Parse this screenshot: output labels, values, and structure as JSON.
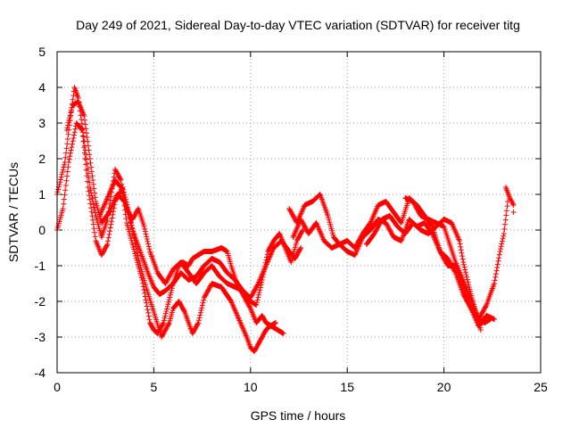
{
  "chart_data": {
    "type": "scatter",
    "title": "Day 249 of 2021, Sidereal Day-to-day VTEC variation (SDTVAR) for receiver titg",
    "xlabel": "GPS time / hours",
    "ylabel": "SDTVAR / TECUs",
    "xlim": [
      0,
      25
    ],
    "ylim": [
      -4,
      5
    ],
    "xticks": [
      0,
      5,
      10,
      15,
      20,
      25
    ],
    "yticks": [
      -4,
      -3,
      -2,
      -1,
      0,
      1,
      2,
      3,
      4,
      5
    ],
    "grid": true,
    "marker": "+",
    "series_color": "#ff0000",
    "series": [
      {
        "name": "trace-1",
        "x": [
          0.0,
          0.4,
          0.7,
          0.9,
          1.1,
          1.4,
          1.7,
          2.0,
          2.3,
          2.6,
          3.0,
          3.3,
          3.6,
          4.0,
          4.4,
          4.8,
          5.0,
          5.2,
          5.5,
          6.0,
          6.3,
          6.5,
          6.8,
          7.0,
          7.3,
          7.6,
          8.0,
          8.5,
          8.8,
          9.0,
          9.3,
          9.6,
          10.0,
          10.3,
          10.6,
          10.8,
          11.1,
          11.4,
          11.7
        ],
        "y": [
          1.0,
          1.9,
          3.2,
          4.0,
          3.7,
          2.5,
          1.2,
          0.4,
          -0.2,
          0.3,
          1.7,
          1.4,
          0.2,
          -0.6,
          -1.4,
          -2.6,
          -2.8,
          -2.9,
          -2.6,
          -1.5,
          -1.0,
          -0.9,
          -1.0,
          -0.8,
          -0.7,
          -0.6,
          -0.6,
          -0.5,
          -0.6,
          -1.0,
          -1.5,
          -1.8,
          -2.2,
          -2.6,
          -2.4,
          -2.6,
          -2.7,
          -2.8,
          -2.9
        ]
      },
      {
        "name": "trace-2",
        "x": [
          0.0,
          0.3,
          0.6,
          1.0,
          1.3,
          1.6,
          2.0,
          2.3,
          2.6,
          3.0,
          3.4,
          3.8,
          4.2,
          4.6,
          5.0,
          5.4,
          5.8,
          6.0,
          6.3,
          6.6,
          7.0,
          7.3,
          7.6,
          8.0,
          8.5,
          9.0,
          9.4,
          9.8,
          10.0,
          10.2,
          10.5,
          10.8,
          11.0,
          11.3
        ],
        "y": [
          0.0,
          0.6,
          1.9,
          3.0,
          2.8,
          1.2,
          -0.3,
          -0.7,
          -0.4,
          0.8,
          1.2,
          0.3,
          -0.8,
          -1.6,
          -2.3,
          -3.0,
          -2.6,
          -2.2,
          -2.0,
          -2.3,
          -2.9,
          -2.6,
          -1.9,
          -1.5,
          -1.6,
          -2.0,
          -2.5,
          -3.0,
          -3.3,
          -3.4,
          -3.1,
          -2.8,
          -2.7,
          -2.6
        ]
      },
      {
        "name": "trace-3",
        "x": [
          0.5,
          0.8,
          1.1,
          1.4,
          1.7,
          2.0,
          2.3,
          2.7,
          3.1,
          3.5,
          3.9,
          4.3,
          4.7,
          5.0,
          5.3,
          5.6,
          6.0,
          6.4,
          6.8,
          7.2,
          7.6,
          8.0,
          8.4,
          8.8,
          9.2,
          9.6,
          10.0,
          10.3,
          10.6,
          10.9,
          11.2,
          11.5,
          11.8,
          12.1,
          12.4,
          12.7
        ],
        "y": [
          2.8,
          3.5,
          3.6,
          3.2,
          2.0,
          0.8,
          0.2,
          0.5,
          1.0,
          0.8,
          0.0,
          -0.6,
          -1.2,
          -1.6,
          -1.8,
          -1.7,
          -1.5,
          -1.2,
          -1.4,
          -1.3,
          -1.0,
          -0.8,
          -0.9,
          -1.2,
          -1.4,
          -1.7,
          -2.0,
          -2.1,
          -1.4,
          -0.6,
          -0.3,
          -0.1,
          -0.5,
          -0.9,
          -0.3,
          0.0
        ]
      },
      {
        "name": "trace-4",
        "x": [
          2.2,
          2.6,
          3.0,
          3.3,
          3.6,
          3.9,
          4.2,
          4.5,
          4.8,
          5.2,
          5.6,
          6.0,
          6.4,
          6.8,
          7.2,
          7.6,
          8.0,
          8.4,
          8.8,
          9.2,
          9.6,
          10.0,
          10.4,
          10.8,
          11.2,
          11.6,
          12.0,
          12.3,
          12.6
        ],
        "y": [
          0.4,
          0.9,
          1.4,
          1.2,
          0.6,
          0.3,
          0.6,
          0.1,
          -0.6,
          -1.2,
          -1.5,
          -1.1,
          -0.9,
          -1.2,
          -1.5,
          -1.2,
          -1.0,
          -1.3,
          -1.5,
          -1.6,
          -1.7,
          -1.9,
          -1.5,
          -1.0,
          -0.5,
          -0.3,
          -0.6,
          -0.8,
          -0.5
        ]
      },
      {
        "name": "trace-5",
        "x": [
          12.0,
          12.4,
          12.8,
          13.2,
          13.6,
          14.0,
          14.3,
          14.6,
          15.0,
          15.4,
          15.8,
          16.2,
          16.6,
          17.0,
          17.4,
          17.8,
          18.2,
          18.6,
          19.0,
          19.4,
          19.8,
          20.2,
          20.6,
          21.0,
          21.4,
          21.8,
          22.2,
          22.6,
          22.9,
          23.1,
          23.3
        ],
        "y": [
          0.6,
          0.2,
          0.7,
          0.8,
          1.0,
          0.4,
          -0.2,
          -0.4,
          -0.3,
          -0.5,
          -0.1,
          0.2,
          0.7,
          0.8,
          0.5,
          0.2,
          0.9,
          0.7,
          0.4,
          0.1,
          -0.6,
          -0.8,
          -1.2,
          -1.8,
          -2.2,
          -2.5,
          -2.1,
          -1.5,
          -0.6,
          -0.1,
          0.8
        ]
      },
      {
        "name": "trace-6",
        "x": [
          12.2,
          12.6,
          13.0,
          13.4,
          13.8,
          14.2,
          14.6,
          15.0,
          15.4,
          15.8,
          16.2,
          16.6,
          17.0,
          17.4,
          17.8,
          18.2,
          18.6,
          19.0,
          19.4,
          19.8,
          20.2,
          20.6,
          21.0,
          21.4,
          21.8,
          22.2,
          22.6
        ],
        "y": [
          -0.2,
          0.3,
          -0.1,
          0.2,
          -0.3,
          -0.5,
          -0.4,
          -0.6,
          -0.7,
          -0.2,
          0.0,
          0.3,
          0.2,
          -0.2,
          -0.3,
          0.3,
          0.1,
          0.2,
          -0.1,
          -0.6,
          -1.0,
          -1.0,
          -1.6,
          -2.2,
          -2.7,
          -2.4,
          -2.5
        ]
      },
      {
        "name": "trace-7",
        "x": [
          16.0,
          16.4,
          16.8,
          17.2,
          17.6,
          18.0,
          18.4,
          18.8,
          19.2,
          19.6,
          20.0,
          20.4,
          20.8,
          21.0,
          21.3,
          21.6,
          21.9
        ],
        "y": [
          -0.4,
          -0.1,
          0.3,
          0.4,
          0.1,
          -0.1,
          0.2,
          0.0,
          -0.1,
          0.1,
          0.3,
          0.2,
          -0.3,
          -0.9,
          -1.6,
          -2.2,
          -2.8
        ]
      },
      {
        "name": "trace-8",
        "x": [
          18.0,
          18.4,
          18.8,
          19.2,
          19.6,
          20.0,
          20.3,
          20.6,
          20.9,
          21.2,
          21.5,
          21.8,
          22.1,
          22.4
        ],
        "y": [
          0.9,
          0.8,
          0.4,
          0.3,
          0.2,
          0.1,
          -0.4,
          -0.9,
          -1.3,
          -1.7,
          -2.1,
          -2.5,
          -2.6,
          -2.5
        ]
      },
      {
        "name": "trace-9",
        "x": [
          23.2,
          23.4,
          23.5,
          23.6,
          23.6
        ],
        "y": [
          1.2,
          0.9,
          0.8,
          0.7,
          0.5
        ]
      }
    ]
  }
}
